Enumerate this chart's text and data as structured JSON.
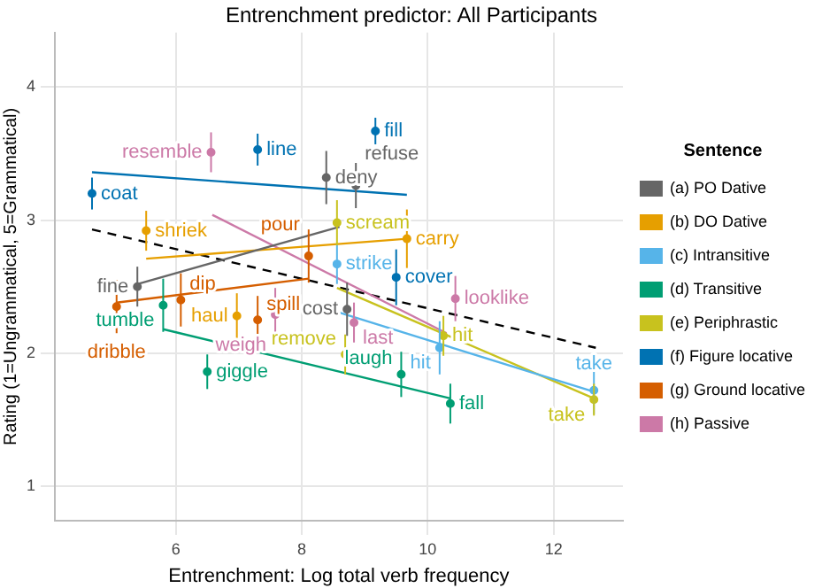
{
  "chart_data": {
    "type": "scatter",
    "title": "Entrenchment predictor: All Participants",
    "xlabel": "Entrenchment: Log total verb frequency",
    "ylabel": "Rating (1=Ungrammatical, 5=Grammatical)",
    "legend_title": "Sentence",
    "legend": "right",
    "grid": true,
    "marker": "circle",
    "xlim": [
      4.08,
      13.1
    ],
    "ylim": [
      0.74,
      4.41
    ],
    "xticks": [
      6,
      8,
      10,
      12
    ],
    "yticks": [
      1,
      2,
      3,
      4
    ],
    "series": [
      {
        "name": "(a) PO Dative",
        "color": "#666666",
        "x": [
          8.39,
          8.86,
          5.39,
          8.72
        ],
        "values": [
          3.32,
          3.26,
          2.5,
          2.33
        ],
        "errors": [
          0.2,
          0.17,
          0.15,
          0.2
        ],
        "value_labels": [
          "deny",
          "refuse",
          "fine",
          "cost"
        ]
      },
      {
        "name": "(b) DO Dative",
        "color": "#e69f00",
        "x": [
          5.53,
          9.67,
          6.97
        ],
        "values": [
          2.92,
          2.86,
          2.28
        ],
        "errors": [
          0.15,
          0.22,
          0.17
        ],
        "value_labels": [
          "shriek",
          "carry",
          "haul"
        ]
      },
      {
        "name": "(c) Intransitive",
        "color": "#56b4e9",
        "x": [
          8.56,
          10.19,
          12.64
        ],
        "values": [
          2.67,
          2.04,
          1.72
        ],
        "errors": [
          0.15,
          0.2,
          0.18
        ],
        "value_labels": [
          "strike",
          "hit",
          "take"
        ]
      },
      {
        "name": "(d) Transitive",
        "color": "#009e73",
        "x": [
          5.8,
          6.5,
          9.58,
          10.36
        ],
        "values": [
          2.36,
          1.86,
          1.84,
          1.62
        ],
        "errors": [
          0.2,
          0.13,
          0.17,
          0.15
        ],
        "value_labels": [
          "tumble",
          "giggle",
          "laugh",
          "fall"
        ]
      },
      {
        "name": "(e) Periphrastic",
        "color": "#c8c21e",
        "x": [
          8.56,
          8.69,
          10.25,
          12.64
        ],
        "values": [
          2.98,
          1.99,
          2.13,
          1.65
        ],
        "errors": [
          0.17,
          0.15,
          0.15,
          0.12
        ],
        "value_labels": [
          "scream",
          "remove",
          "hit",
          "take"
        ]
      },
      {
        "name": "(f) Figure locative",
        "color": "#0072b2",
        "x": [
          4.67,
          7.3,
          9.17,
          9.5
        ],
        "values": [
          3.2,
          3.53,
          3.67,
          2.57
        ],
        "errors": [
          0.12,
          0.12,
          0.1,
          0.21
        ],
        "value_labels": [
          "coat",
          "line",
          "fill",
          "cover"
        ]
      },
      {
        "name": "(g) Ground locative",
        "color": "#d55e00",
        "x": [
          5.06,
          6.08,
          7.3,
          8.11
        ],
        "values": [
          2.35,
          2.4,
          2.25,
          2.73
        ],
        "errors": [
          0.2,
          0.2,
          0.18,
          0.2
        ],
        "value_labels": [
          "dribble",
          "dip",
          "spill",
          "pour"
        ]
      },
      {
        "name": "(h) Passive",
        "color": "#cc79a7",
        "x": [
          6.56,
          7.58,
          10.44,
          8.83
        ],
        "values": [
          3.51,
          2.29,
          2.41,
          2.23
        ],
        "errors": [
          0.15,
          0.2,
          0.17,
          0.15
        ],
        "value_labels": [
          "resemble",
          "weigh",
          "looklike",
          "last"
        ]
      },
      {
        "type": "line",
        "marker": "none",
        "color": "#666666",
        "x": [
          5.4,
          8.6
        ],
        "values": [
          2.52,
          2.95
        ]
      },
      {
        "type": "line",
        "marker": "none",
        "color": "#e69f00",
        "x": [
          5.53,
          9.67
        ],
        "values": [
          2.71,
          2.86
        ]
      },
      {
        "type": "line",
        "marker": "none",
        "color": "#56b4e9",
        "x": [
          8.56,
          12.64
        ],
        "values": [
          2.31,
          1.71
        ]
      },
      {
        "type": "line",
        "marker": "none",
        "color": "#009e73",
        "x": [
          5.8,
          10.36
        ],
        "values": [
          2.18,
          1.66
        ]
      },
      {
        "type": "line",
        "marker": "none",
        "color": "#c8c21e",
        "x": [
          8.56,
          12.64
        ],
        "values": [
          2.49,
          1.66
        ]
      },
      {
        "type": "line",
        "marker": "none",
        "color": "#0072b2",
        "x": [
          4.67,
          9.67
        ],
        "values": [
          3.36,
          3.19
        ]
      },
      {
        "type": "line",
        "marker": "none",
        "color": "#d55e00",
        "x": [
          5.06,
          8.11
        ],
        "values": [
          2.38,
          2.56
        ]
      },
      {
        "type": "line",
        "marker": "none",
        "color": "#cc79a7",
        "x": [
          6.58,
          10.3
        ],
        "values": [
          3.04,
          2.15
        ]
      },
      {
        "type": "line",
        "marker": "none",
        "color": "#000000",
        "line_style": "dashed",
        "x": [
          4.67,
          12.67
        ],
        "values": [
          2.93,
          2.04
        ]
      }
    ]
  }
}
